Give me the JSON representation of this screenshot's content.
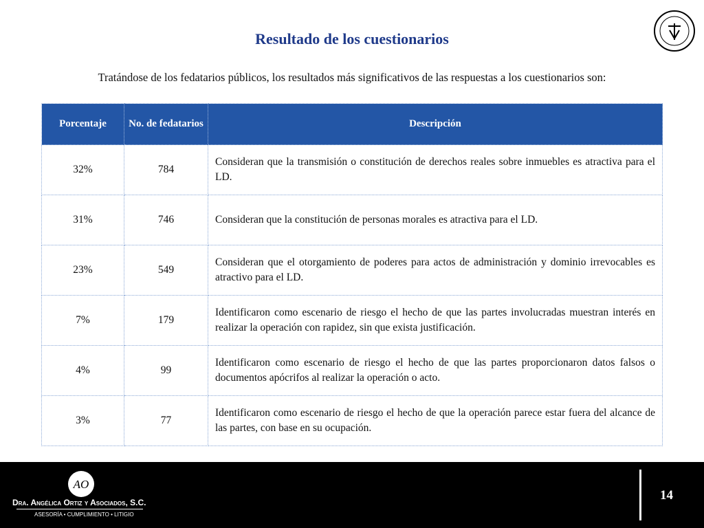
{
  "title": "Resultado de los cuestionarios",
  "intro": "Tratándose de los fedatarios públicos, los resultados más significativos de las respuestas a los cuestionarios son:",
  "table": {
    "headers": [
      "Porcentaje",
      "No. de fedatarios",
      "Descripción"
    ],
    "rows": [
      [
        "32%",
        "784",
        "Consideran que la transmisión o constitución de derechos reales sobre inmuebles es atractiva para el LD."
      ],
      [
        "31%",
        "746",
        "Consideran que la constitución de personas morales es atractiva para el LD."
      ],
      [
        "23%",
        "549",
        "Consideran que el otorgamiento de poderes para actos de administración y dominio irrevocables es atractivo para el LD."
      ],
      [
        "7%",
        "179",
        "Identificaron como escenario de riesgo el hecho de que las partes involucradas muestran interés en realizar la operación con rapidez, sin que exista justificación."
      ],
      [
        "4%",
        "99",
        "Identificaron como escenario de riesgo el hecho de que las partes  proporcionaron datos falsos o documentos apócrifos al realizar la operación o acto."
      ],
      [
        "3%",
        "77",
        "Identificaron como escenario de riesgo el hecho de que la operación parece estar fuera del alcance de las partes, con base en su ocupación."
      ]
    ]
  },
  "footer": {
    "logo": "AO",
    "company": "Dra. Angélica Ortiz y Asociados, S.C.",
    "tagline": "ASESORÍA • CUMPLIMIENTO • LITIGIO",
    "page": "14"
  }
}
